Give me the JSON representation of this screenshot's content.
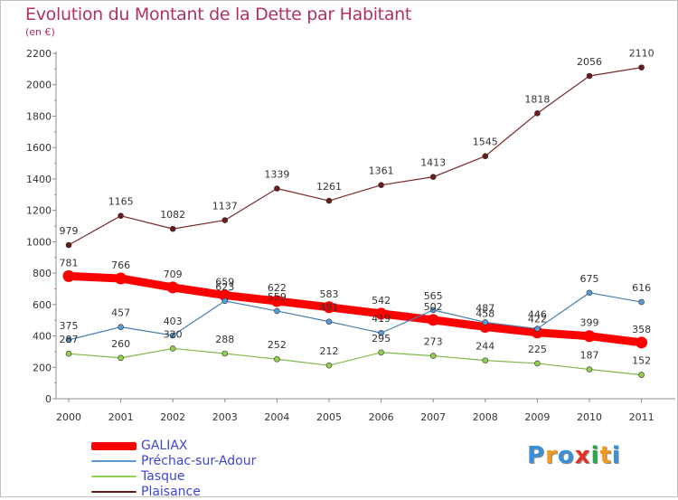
{
  "header": {
    "title": "Evolution du Montant de la Dette par Habitant",
    "subtitle": "(en €)"
  },
  "logo": {
    "letters": [
      "P",
      "r",
      "o",
      "x",
      "i",
      "t",
      "i"
    ],
    "colors": [
      "#3a8fd6",
      "#f39a1d",
      "#3a8fd6",
      "#e6332a",
      "#2aa84a",
      "#f39a1d",
      "#3a8fd6"
    ]
  },
  "chart_data": {
    "type": "line",
    "title": "Evolution du Montant de la Dette par Habitant",
    "subtitle": "(en €)",
    "xlabel": "",
    "ylabel": "",
    "ylim": [
      0,
      2200
    ],
    "yticks": [
      0,
      200,
      400,
      600,
      800,
      1000,
      1200,
      1400,
      1600,
      1800,
      2000,
      2200
    ],
    "grid": false,
    "legend_position": "bottom-left",
    "categories": [
      "2000",
      "2001",
      "2002",
      "2003",
      "2004",
      "2005",
      "2006",
      "2007",
      "2008",
      "2009",
      "2010",
      "2011"
    ],
    "series": [
      {
        "name": "GALIAX",
        "color": "#ff0000",
        "values": [
          781,
          766,
          709,
          659,
          622,
          583,
          542,
          502,
          458,
          422,
          399,
          358
        ],
        "labels": [
          "781",
          "766",
          "709",
          "659",
          "622",
          "583",
          "542",
          "502",
          "458",
          "422",
          "399",
          "358"
        ]
      },
      {
        "name": "Préchac-sur-Adour",
        "color": "#5b9bd5",
        "values": [
          375,
          457,
          403,
          623,
          559,
          491,
          419,
          565,
          487,
          446,
          675,
          616
        ],
        "labels": [
          "375",
          "457",
          "403",
          "623",
          "559",
          "491",
          "419",
          "565",
          "487",
          "446",
          "675",
          "616"
        ]
      },
      {
        "name": "Tasque",
        "color": "#92d050",
        "values": [
          287,
          260,
          320,
          288,
          252,
          212,
          295,
          273,
          244,
          225,
          187,
          152
        ],
        "labels": [
          "287",
          "260",
          "320",
          "288",
          "252",
          "212",
          "295",
          "273",
          "244",
          "225",
          "187",
          "152"
        ]
      },
      {
        "name": "Plaisance",
        "color": "#6b1a1a",
        "values": [
          979,
          1165,
          1082,
          1137,
          1339,
          1261,
          1361,
          1413,
          1545,
          1818,
          2056,
          2110
        ],
        "labels": [
          "979",
          "1165",
          "1082",
          "1137",
          "1339",
          "1261",
          "1361",
          "1413",
          "1545",
          "1818",
          "2056",
          "2110"
        ]
      }
    ]
  }
}
